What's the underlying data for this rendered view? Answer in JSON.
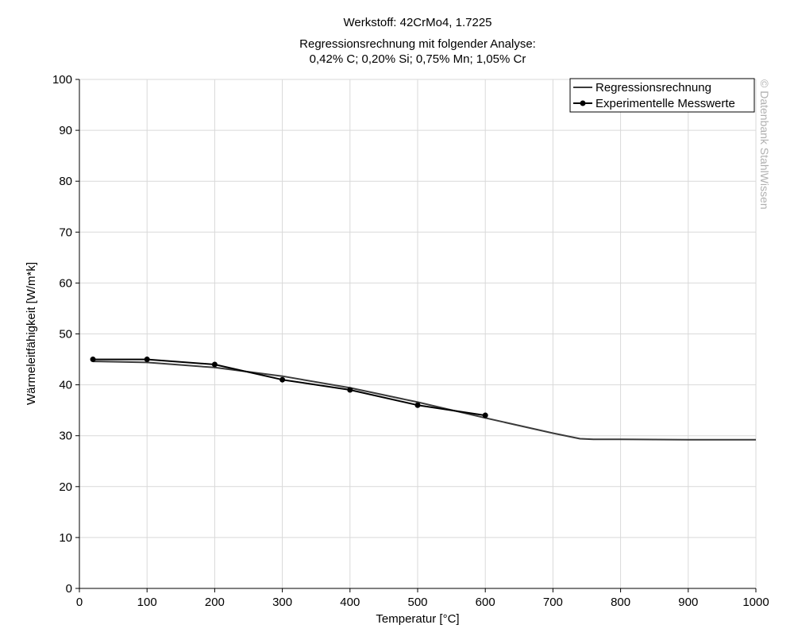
{
  "chart_data": {
    "type": "line",
    "title": "Werkstoff: 42CrMo4, 1.7225",
    "subtitle_line1": "Regressionsrechnung mit folgender Analyse:",
    "subtitle_line2": "0,42% C; 0,20% Si; 0,75% Mn; 1,05% Cr",
    "xlabel": "Temperatur [°C]",
    "ylabel": "Wärmeleitfähigkeit [W/m*k]",
    "xlim": [
      0,
      1000
    ],
    "ylim": [
      0,
      100
    ],
    "xticks": [
      0,
      100,
      200,
      300,
      400,
      500,
      600,
      700,
      800,
      900,
      1000
    ],
    "yticks": [
      0,
      10,
      20,
      30,
      40,
      50,
      60,
      70,
      80,
      90,
      100
    ],
    "grid": true,
    "legend_position": "top-right",
    "watermark": "© Datenbank StahlWissen",
    "series": [
      {
        "name": "Regressionsrechnung",
        "marker": false,
        "color": "#3a3a3a",
        "x": [
          20,
          100,
          200,
          300,
          400,
          500,
          600,
          700,
          740,
          760,
          800,
          900,
          1000
        ],
        "y": [
          44.6,
          44.4,
          43.4,
          41.7,
          39.4,
          36.6,
          33.5,
          30.5,
          29.4,
          29.3,
          29.3,
          29.2,
          29.2
        ]
      },
      {
        "name": "Experimentelle Messwerte",
        "marker": true,
        "color": "#000000",
        "x": [
          20,
          100,
          200,
          300,
          400,
          500,
          600
        ],
        "y": [
          45,
          45,
          44,
          41,
          39,
          36,
          34
        ]
      }
    ]
  }
}
